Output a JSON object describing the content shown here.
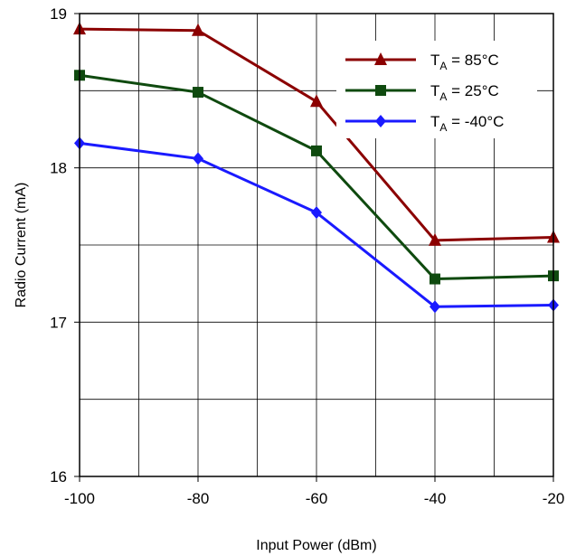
{
  "chart_data": {
    "type": "line",
    "title": "",
    "xlabel": "Input Power (dBm)",
    "ylabel": "Radio Current (mA)",
    "x": [
      -100,
      -80,
      -60,
      -40,
      -20
    ],
    "xlim": [
      -100,
      -20
    ],
    "ylim": [
      16,
      19
    ],
    "x_ticks": [
      "-100",
      "-80",
      "-60",
      "-40",
      "-20"
    ],
    "y_ticks": [
      "16",
      "17",
      "18",
      "19"
    ],
    "grid": true,
    "legend_position": "top-right",
    "series": [
      {
        "name_main": "T",
        "name_sub": "A",
        "name_rest": " = 85°C",
        "color": "#8b0000",
        "marker": "triangle",
        "values": [
          18.9,
          18.89,
          18.43,
          17.53,
          17.55
        ]
      },
      {
        "name_main": "T",
        "name_sub": "A",
        "name_rest": " = 25°C",
        "color": "#0f4a0f",
        "marker": "square",
        "values": [
          18.6,
          18.49,
          18.11,
          17.28,
          17.3
        ]
      },
      {
        "name_main": "T",
        "name_sub": "A",
        "name_rest": " = -40°C",
        "color": "#1a1aff",
        "marker": "diamond",
        "values": [
          18.16,
          18.06,
          17.71,
          17.1,
          17.11
        ]
      }
    ]
  }
}
